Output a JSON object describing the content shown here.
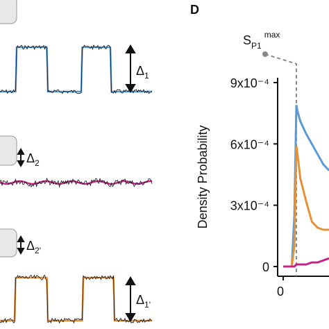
{
  "panel_label": "D",
  "left_panel": {
    "deltas": [
      {
        "base": "Δ",
        "sub": "1"
      },
      {
        "base": "Δ",
        "sub": "2"
      },
      {
        "base": "Δ",
        "sub": "2'"
      },
      {
        "base": "Δ",
        "sub": "1'"
      }
    ]
  },
  "chart_data": {
    "type": "line",
    "y_label": "Density Probability",
    "annotation": {
      "base": "S",
      "sub": "P1",
      "sup": "max"
    },
    "reference_x": 4.6,
    "x": [
      0,
      1,
      3,
      3.9,
      4.6,
      5,
      6,
      8,
      10,
      12,
      14,
      16
    ],
    "series": [
      {
        "color": "#5b9bd5",
        "values": [
          0,
          0,
          0,
          0.00025,
          0.00079,
          0.00076,
          0.00071,
          0.00065,
          0.0006,
          0.00055,
          0.0005,
          0.00047
        ]
      },
      {
        "color": "#e69138",
        "values": [
          0,
          0,
          0,
          0.0001,
          0.00059,
          0.00055,
          0.00043,
          0.00032,
          0.00022,
          0.00019,
          0.00018,
          0.00018
        ]
      },
      {
        "color": "#c2248a",
        "values": [
          0,
          0,
          0,
          0,
          1e-05,
          1e-05,
          1e-05,
          1e-05,
          2e-05,
          2e-05,
          3e-05,
          4e-05
        ]
      }
    ],
    "xlim": [
      0,
      16
    ],
    "xticks": [
      0
    ],
    "ylim": [
      0,
      0.0009
    ],
    "yticks": [
      0,
      {
        "value": 0.0003,
        "label": "3x10⁻⁴"
      },
      {
        "value": 0.0006,
        "label": "6x10⁻⁴"
      },
      {
        "value": 0.0009,
        "label": "9x10⁻⁴"
      }
    ]
  }
}
